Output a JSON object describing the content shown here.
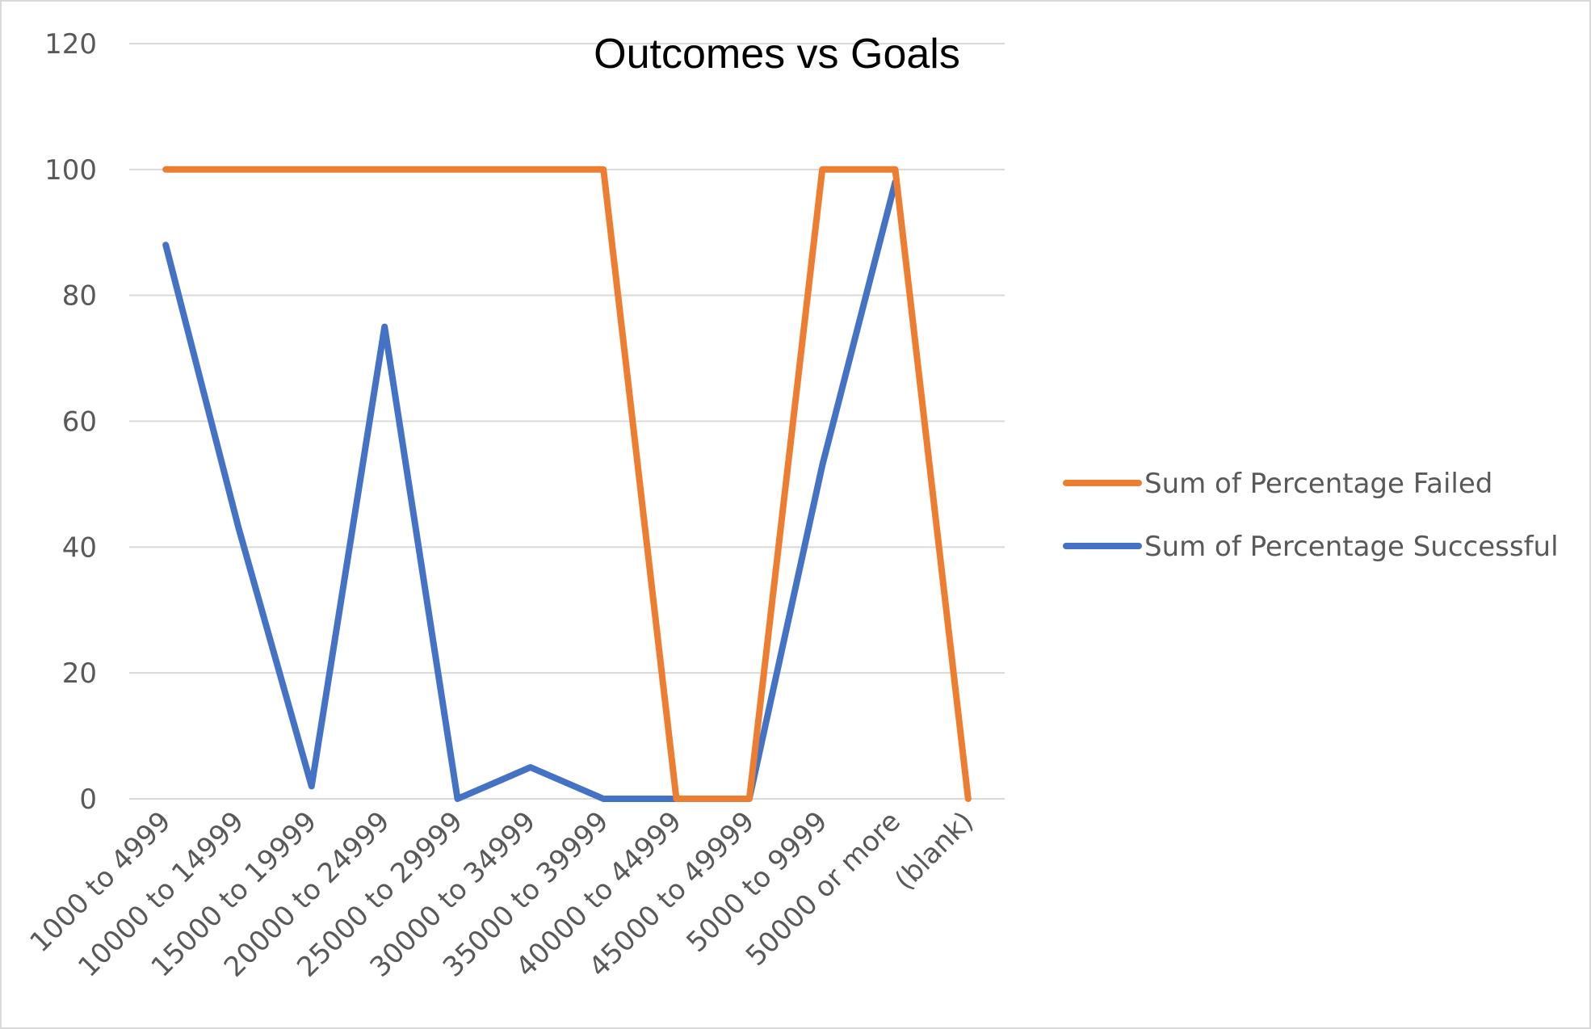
{
  "chart_data": {
    "type": "line",
    "title": "Outcomes vs Goals",
    "xlabel": "",
    "ylabel": "",
    "categories": [
      "1000 to 4999",
      "10000 to 14999",
      "15000 to 19999",
      "20000 to 24999",
      "25000 to 29999",
      "30000 to 34999",
      "35000 to 39999",
      "40000 to 44999",
      "45000 to 49999",
      "5000 to 9999",
      "50000 or more",
      "(blank)"
    ],
    "series": [
      {
        "name": "Sum of Percentage Failed",
        "color": "#ED7D31",
        "values": [
          100,
          100,
          100,
          100,
          100,
          100,
          100,
          0,
          0,
          100,
          100,
          0
        ]
      },
      {
        "name": "Sum of Percentage Successful",
        "color": "#4472C4",
        "values": [
          88,
          43,
          2,
          75,
          0,
          5,
          0,
          0,
          0,
          53,
          98,
          null
        ]
      }
    ],
    "ylim": [
      0,
      120
    ],
    "yticks": [
      0,
      20,
      40,
      60,
      80,
      100,
      120
    ],
    "grid": true,
    "legend_position": "right"
  }
}
